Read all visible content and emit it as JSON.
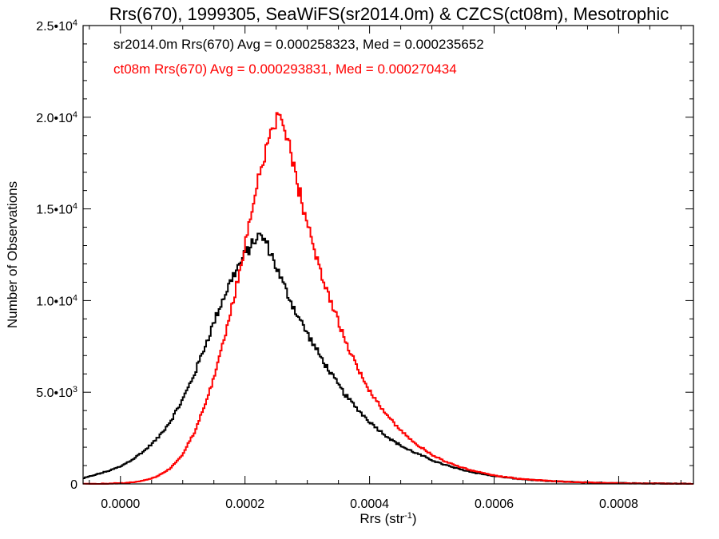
{
  "chart_data": {
    "type": "line",
    "title": "Rrs(670), 1999305, SeaWiFS(sr2014.0m) & CZCS(ct08m), Mesotrophic",
    "xlabel_main": "Rrs (str",
    "xlabel_sup": "-1",
    "xlabel_end": ")",
    "ylabel": "Number of Observations",
    "xlim": [
      -6e-05,
      0.00092
    ],
    "ylim": [
      0,
      25000
    ],
    "x_ticks": [
      {
        "value": 0.0,
        "label": "0.0000"
      },
      {
        "value": 0.0002,
        "label": "0.0002"
      },
      {
        "value": 0.0004,
        "label": "0.0004"
      },
      {
        "value": 0.0006,
        "label": "0.0006"
      },
      {
        "value": 0.0008,
        "label": "0.0008"
      }
    ],
    "y_ticks": [
      {
        "value": 0,
        "mant": "0",
        "exp": ""
      },
      {
        "value": 5000,
        "mant": "5.0•10",
        "exp": "3"
      },
      {
        "value": 10000,
        "mant": "1.0•10",
        "exp": "4"
      },
      {
        "value": 15000,
        "mant": "1.5•10",
        "exp": "4"
      },
      {
        "value": 20000,
        "mant": "2.0•10",
        "exp": "4"
      },
      {
        "value": 25000,
        "mant": "2.5•10",
        "exp": "4"
      }
    ],
    "stats": [
      {
        "text": "sr2014.0m Rrs(670) Avg = 0.000258323, Med = 0.000235652",
        "color": "#000000"
      },
      {
        "text": "ct08m Rrs(670) Avg = 0.000293831, Med = 0.000270434",
        "color": "#ff0000"
      }
    ],
    "series": [
      {
        "color": "#000000",
        "points": [
          [
            -6e-05,
            300
          ],
          [
            -4e-05,
            500
          ],
          [
            -2e-05,
            700
          ],
          [
            0.0,
            950
          ],
          [
            2e-05,
            1350
          ],
          [
            4e-05,
            1850
          ],
          [
            6e-05,
            2500
          ],
          [
            8e-05,
            3400
          ],
          [
            0.0001,
            4600
          ],
          [
            0.00012,
            6100
          ],
          [
            0.00014,
            7900
          ],
          [
            0.00016,
            9700
          ],
          [
            0.00018,
            11300
          ],
          [
            0.0002,
            12500
          ],
          [
            0.00021,
            13000
          ],
          [
            0.00022,
            13500
          ],
          [
            0.00023,
            13400
          ],
          [
            0.00024,
            12700
          ],
          [
            0.00026,
            11000
          ],
          [
            0.00028,
            9500
          ],
          [
            0.0003,
            8200
          ],
          [
            0.00032,
            7000
          ],
          [
            0.00034,
            5900
          ],
          [
            0.00036,
            4900
          ],
          [
            0.00038,
            4100
          ],
          [
            0.0004,
            3400
          ],
          [
            0.00042,
            2800
          ],
          [
            0.00044,
            2300
          ],
          [
            0.00046,
            1900
          ],
          [
            0.00048,
            1600
          ],
          [
            0.0005,
            1300
          ],
          [
            0.00052,
            1050
          ],
          [
            0.00054,
            850
          ],
          [
            0.00056,
            680
          ],
          [
            0.00058,
            540
          ],
          [
            0.0006,
            430
          ],
          [
            0.00062,
            340
          ],
          [
            0.00064,
            270
          ],
          [
            0.00066,
            215
          ],
          [
            0.00068,
            170
          ],
          [
            0.0007,
            135
          ],
          [
            0.00072,
            110
          ],
          [
            0.00074,
            90
          ],
          [
            0.00076,
            72
          ],
          [
            0.00078,
            58
          ],
          [
            0.0008,
            46
          ],
          [
            0.00082,
            37
          ],
          [
            0.00084,
            30
          ],
          [
            0.00086,
            24
          ],
          [
            0.00088,
            19
          ],
          [
            0.0009,
            15
          ],
          [
            0.00092,
            12
          ]
        ]
      },
      {
        "color": "#ff0000",
        "points": [
          [
            -6e-05,
            0
          ],
          [
            -4e-05,
            5
          ],
          [
            -2e-05,
            15
          ],
          [
            0.0,
            40
          ],
          [
            2e-05,
            90
          ],
          [
            4e-05,
            200
          ],
          [
            6e-05,
            420
          ],
          [
            8e-05,
            850
          ],
          [
            0.0001,
            1600
          ],
          [
            0.00012,
            2900
          ],
          [
            0.00014,
            4700
          ],
          [
            0.00016,
            7000
          ],
          [
            0.00018,
            9800
          ],
          [
            0.0002,
            13000
          ],
          [
            0.00022,
            16500
          ],
          [
            0.00024,
            19200
          ],
          [
            0.00025,
            19900
          ],
          [
            0.00026,
            19500
          ],
          [
            0.00027,
            18500
          ],
          [
            0.00028,
            17000
          ],
          [
            0.0003,
            14200
          ],
          [
            0.00032,
            11800
          ],
          [
            0.00034,
            9700
          ],
          [
            0.00036,
            7900
          ],
          [
            0.00038,
            6400
          ],
          [
            0.0004,
            5100
          ],
          [
            0.00042,
            4100
          ],
          [
            0.00044,
            3300
          ],
          [
            0.00046,
            2600
          ],
          [
            0.00048,
            2050
          ],
          [
            0.0005,
            1600
          ],
          [
            0.00052,
            1250
          ],
          [
            0.00054,
            980
          ],
          [
            0.00056,
            770
          ],
          [
            0.00058,
            600
          ],
          [
            0.0006,
            470
          ],
          [
            0.00062,
            370
          ],
          [
            0.00064,
            290
          ],
          [
            0.00066,
            230
          ],
          [
            0.00068,
            180
          ],
          [
            0.0007,
            140
          ],
          [
            0.00072,
            110
          ],
          [
            0.00074,
            85
          ],
          [
            0.00076,
            65
          ],
          [
            0.00078,
            50
          ],
          [
            0.0008,
            38
          ],
          [
            0.00082,
            29
          ],
          [
            0.00084,
            22
          ],
          [
            0.00086,
            17
          ],
          [
            0.00088,
            13
          ],
          [
            0.0009,
            10
          ],
          [
            0.00092,
            8
          ]
        ]
      }
    ]
  }
}
